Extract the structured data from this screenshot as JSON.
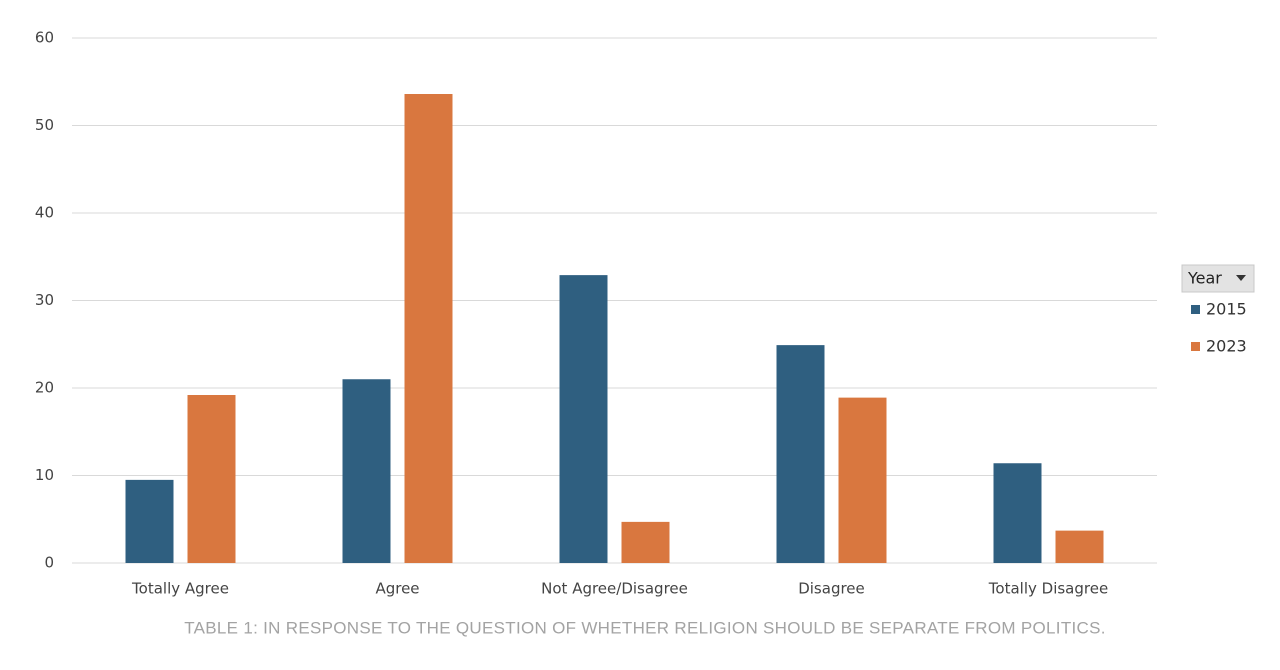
{
  "chart_data": {
    "type": "bar",
    "categories": [
      "Totally Agree",
      "Agree",
      "Not Agree/Disagree",
      "Disagree",
      "Totally Disagree"
    ],
    "series": [
      {
        "name": "2015",
        "color": "#2f5f80",
        "values": [
          9.5,
          21.0,
          32.9,
          24.9,
          11.4
        ]
      },
      {
        "name": "2023",
        "color": "#d9773f",
        "values": [
          19.2,
          53.6,
          4.7,
          18.9,
          3.7
        ]
      }
    ],
    "legend_title": "Year",
    "caption": "TABLE 1: IN RESPONSE TO THE QUESTION OF WHETHER RELIGION SHOULD BE SEPARATE FROM POLITICS.",
    "ylim": [
      0,
      60
    ],
    "yticks": [
      0,
      10,
      20,
      30,
      40,
      50,
      60
    ],
    "grid": true,
    "legend": "right"
  }
}
